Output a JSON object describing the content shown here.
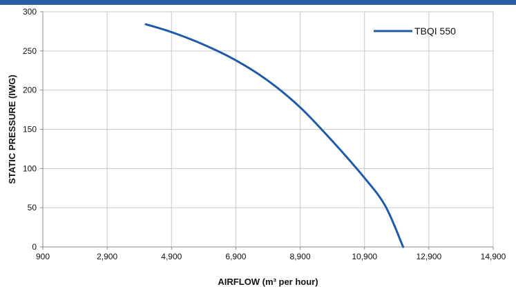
{
  "header": {
    "band_color": "#2a5d9f"
  },
  "chart_data": {
    "type": "line",
    "title": "",
    "xlabel": "AIRFLOW (m³ per hour)",
    "ylabel": "STATIC PRESSURE (IWG)",
    "xlim": [
      900,
      14900
    ],
    "ylim": [
      0,
      300
    ],
    "x_ticks": [
      "900",
      "2,900",
      "4,900",
      "6,900",
      "8,900",
      "10,900",
      "12,900",
      "14,900"
    ],
    "x_tick_values": [
      900,
      2900,
      4900,
      6900,
      8900,
      10900,
      12900,
      14900
    ],
    "y_ticks": [
      "0",
      "50",
      "100",
      "150",
      "200",
      "250",
      "300"
    ],
    "y_tick_values": [
      0,
      50,
      100,
      150,
      200,
      250,
      300
    ],
    "grid": true,
    "legend_position": "top-right",
    "series": [
      {
        "name": "TBQI 550",
        "color": "#1f5aa6",
        "x": [
          4100,
          4900,
          5900,
          6900,
          7900,
          8900,
          9900,
          10900,
          11550,
          12100
        ],
        "y": [
          284,
          274,
          258,
          238,
          212,
          178,
          135,
          88,
          52,
          0
        ]
      }
    ]
  }
}
